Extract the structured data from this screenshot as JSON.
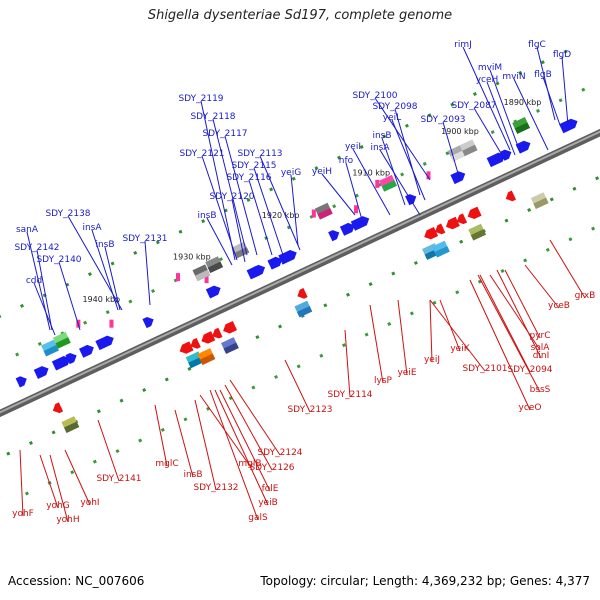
{
  "title": "Shigella dysenteriae Sd197, complete genome",
  "footer": {
    "accession": "Accession: NC_007606",
    "summary": "Topology: circular; Length: 4,369,232 bp; Genes: 4,377"
  },
  "colors": {
    "forward_label": "#1a1acc",
    "reverse_label": "#cc1111",
    "forward_arrow": "#1a1aee",
    "reverse_arrow": "#ee1111",
    "backbone": "#808080"
  },
  "scale_ticks": [
    "1890 kbp",
    "1900 kbp",
    "1910 kbp",
    "1920 kbp",
    "1930 kbp",
    "1940 kbp"
  ],
  "forward_genes": [
    "rimJ",
    "mviM",
    "flgC",
    "flgD",
    "yceH",
    "mviN",
    "flgB",
    "SDY_2100",
    "SDY_2087",
    "SDY_2098",
    "yeiL",
    "SDY_2093",
    "insB",
    "yeiI",
    "insA",
    "nfo",
    "yeiH",
    "SDY_2119",
    "SDY_2118",
    "SDY_2117",
    "SDY_2121",
    "SDY_2113",
    "SDY_2115",
    "SDY_2116",
    "yeiG",
    "SDY_2120",
    "insB",
    "sanA",
    "SDY_2138",
    "insA",
    "insB",
    "SDY_2131",
    "SDY_2142",
    "SDY_2140",
    "cdd"
  ],
  "reverse_genes": [
    "grxB",
    "yceB",
    "pyrC",
    "dinI",
    "solA",
    "SDY_2094",
    "bssS",
    "yceO",
    "yeiK",
    "SDY_2101",
    "yeiJ",
    "yeiE",
    "lysP",
    "SDY_2114",
    "SDY_2123",
    "SDY_2124",
    "SDY_2126",
    "folE",
    "yeiB",
    "galS",
    "mglB",
    "SDY_2132",
    "insB",
    "mglC",
    "SDY_2141",
    "yohI",
    "yohH",
    "yohG",
    "yohF"
  ]
}
